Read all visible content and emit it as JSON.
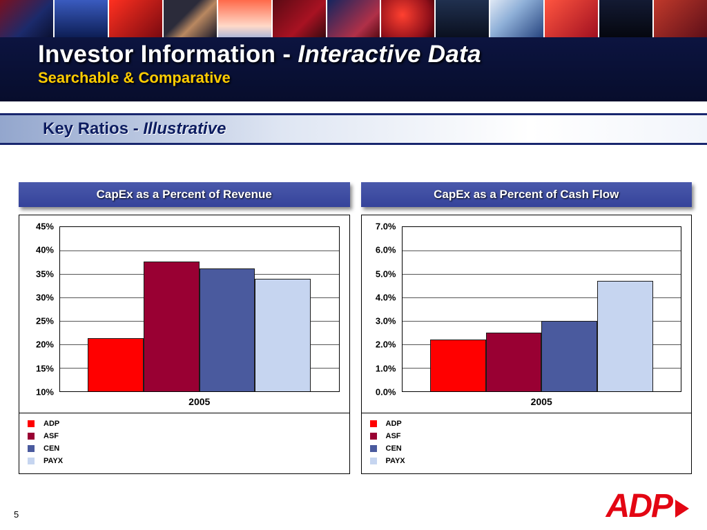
{
  "header": {
    "title_main": "Investor Information - ",
    "title_emph": "Interactive Data",
    "subtitle": "Searchable & Comparative"
  },
  "section": {
    "title_main": "Key Ratios - ",
    "title_emph": "Illustrative"
  },
  "footer": {
    "page_number": "5",
    "logo_text": "ADP"
  },
  "colors": {
    "band_navy": "#0a1033",
    "banner_blue": "#3d4c9e",
    "subtitle_yellow": "#ffcc00",
    "adp_red": "#ff0000",
    "asf_maroon": "#990033",
    "cen_slate": "#4a5a9e",
    "payx_light_blue": "#c6d5f0",
    "logo_red": "#e30613"
  },
  "chart_data": [
    {
      "type": "bar",
      "title": "CapEx as a Percent of Revenue",
      "categories": [
        "2005"
      ],
      "series": [
        {
          "name": "ADP",
          "color": "#ff0000",
          "values": [
            21.3
          ]
        },
        {
          "name": "ASF",
          "color": "#990033",
          "values": [
            37.7
          ]
        },
        {
          "name": "CEN",
          "color": "#4a5a9e",
          "values": [
            36.2
          ]
        },
        {
          "name": "PAYX",
          "color": "#c6d5f0",
          "values": [
            34.0
          ]
        }
      ],
      "xlabel": "2005",
      "ylabel": "",
      "ylim": [
        10,
        45
      ],
      "ytick_step": 5,
      "yticks": [
        "45%",
        "40%",
        "35%",
        "30%",
        "25%",
        "20%",
        "15%",
        "10%"
      ],
      "grid": true,
      "legend_position": "bottom-left"
    },
    {
      "type": "bar",
      "title": "CapEx as a Percent of Cash Flow",
      "categories": [
        "2005"
      ],
      "series": [
        {
          "name": "ADP",
          "color": "#ff0000",
          "values": [
            2.2
          ]
        },
        {
          "name": "ASF",
          "color": "#990033",
          "values": [
            2.5
          ]
        },
        {
          "name": "CEN",
          "color": "#4a5a9e",
          "values": [
            3.0
          ]
        },
        {
          "name": "PAYX",
          "color": "#c6d5f0",
          "values": [
            4.7
          ]
        }
      ],
      "xlabel": "2005",
      "ylabel": "",
      "ylim": [
        0,
        7
      ],
      "ytick_step": 1,
      "yticks": [
        "7.0%",
        "6.0%",
        "5.0%",
        "4.0%",
        "3.0%",
        "2.0%",
        "1.0%",
        "0.0%"
      ],
      "grid": true,
      "legend_position": "bottom-left"
    }
  ]
}
